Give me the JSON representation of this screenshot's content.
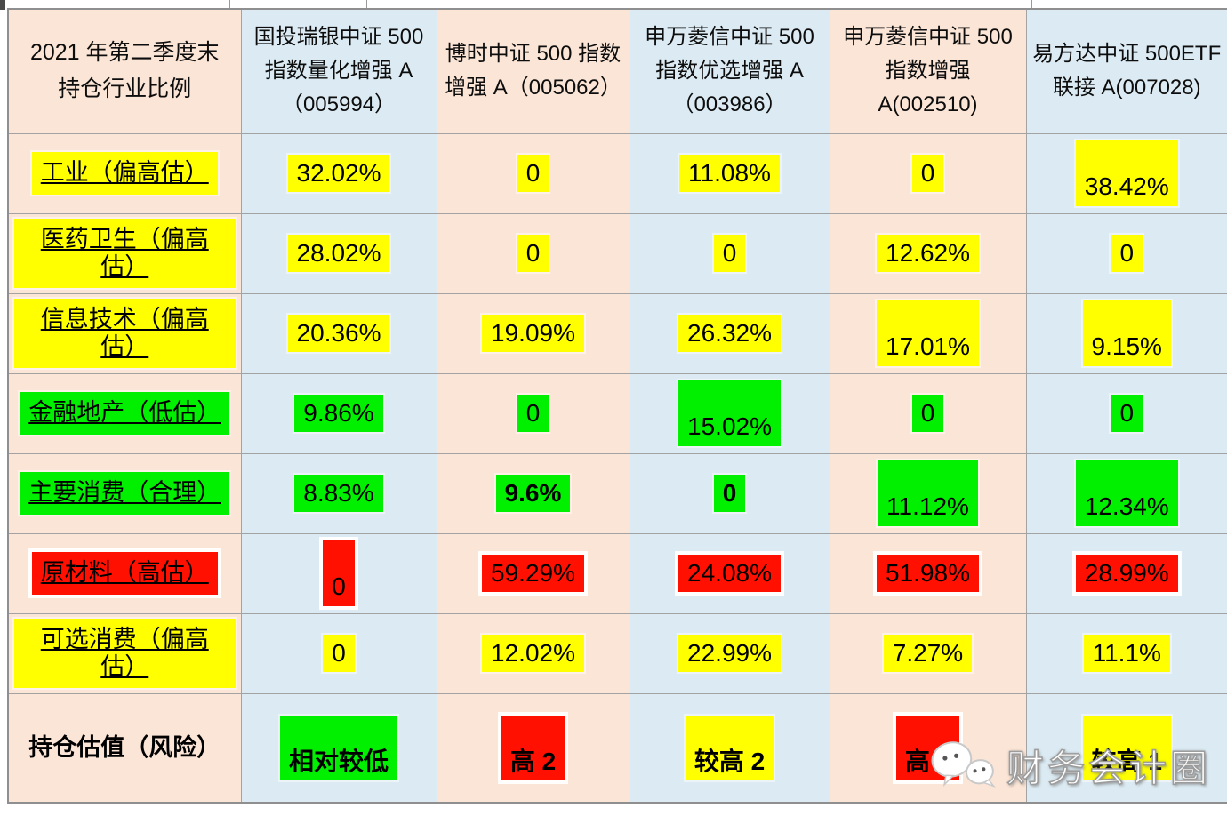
{
  "colors": {
    "pink": "#fbe5d6",
    "blue": "#dcebf3",
    "yellow": "#ffff00",
    "green": "#00f000",
    "red": "#ff1000",
    "grid": "#a3a3a3"
  },
  "watermark": {
    "text": "财务会计圈",
    "icon": "wechat-icon"
  },
  "table": {
    "corner": {
      "line1": "2021 年第二季度末",
      "line2": "持仓行业比例"
    },
    "columns": [
      {
        "label": "国投瑞银中证 500 指数量化增强 A（005994）",
        "tint": "blue"
      },
      {
        "label": "博时中证 500 指数增强 A（005062）",
        "tint": "pink"
      },
      {
        "label": "申万菱信中证 500 指数优选增强 A（003986）",
        "tint": "blue"
      },
      {
        "label": "申万菱信中证 500 指数增强 A(002510)",
        "tint": "pink"
      },
      {
        "label": "易方达中证 500ETF 联接 A(007028)",
        "tint": "blue"
      }
    ],
    "rows": [
      {
        "label": "工业（偏高估）",
        "label_hl": "yellow",
        "underline": true,
        "values": [
          {
            "text": "32.02%",
            "hl": "yellow"
          },
          {
            "text": "0",
            "hl": "yellow"
          },
          {
            "text": "11.08%",
            "hl": "yellow"
          },
          {
            "text": "0",
            "hl": "yellow"
          },
          {
            "text": "38.42%",
            "hl": "yellow",
            "tall": true
          }
        ]
      },
      {
        "label": "医药卫生（偏高估）",
        "label_hl": "yellow",
        "underline": true,
        "values": [
          {
            "text": "28.02%",
            "hl": "yellow"
          },
          {
            "text": "0",
            "hl": "yellow"
          },
          {
            "text": "0",
            "hl": "yellow"
          },
          {
            "text": "12.62%",
            "hl": "yellow"
          },
          {
            "text": "0",
            "hl": "yellow"
          }
        ]
      },
      {
        "label": "信息技术（偏高估）",
        "label_hl": "yellow",
        "underline": true,
        "values": [
          {
            "text": "20.36%",
            "hl": "yellow"
          },
          {
            "text": "19.09%",
            "hl": "yellow"
          },
          {
            "text": "26.32%",
            "hl": "yellow"
          },
          {
            "text": "17.01%",
            "hl": "yellow",
            "tall": true
          },
          {
            "text": "9.15%",
            "hl": "yellow",
            "tall": true
          }
        ]
      },
      {
        "label": "金融地产（低估）",
        "label_hl": "green",
        "underline": true,
        "values": [
          {
            "text": "9.86%",
            "hl": "green"
          },
          {
            "text": "0",
            "hl": "green"
          },
          {
            "text": "15.02%",
            "hl": "green",
            "tall": true
          },
          {
            "text": "0",
            "hl": "green"
          },
          {
            "text": "0",
            "hl": "green"
          }
        ]
      },
      {
        "label": "主要消费（合理）",
        "label_hl": "green",
        "underline": true,
        "values": [
          {
            "text": "8.83%",
            "hl": "green"
          },
          {
            "text": "9.6%",
            "hl": "green",
            "bold": true
          },
          {
            "text": "0",
            "hl": "green",
            "bold": true
          },
          {
            "text": "11.12%",
            "hl": "green",
            "tall": true
          },
          {
            "text": "12.34%",
            "hl": "green",
            "tall": true
          }
        ]
      },
      {
        "label": "原材料（高估）",
        "label_hl": "red",
        "underline": true,
        "values": [
          {
            "text": "0",
            "hl": "red",
            "tall": true
          },
          {
            "text": "59.29%",
            "hl": "red"
          },
          {
            "text": "24.08%",
            "hl": "red"
          },
          {
            "text": "51.98%",
            "hl": "red"
          },
          {
            "text": "28.99%",
            "hl": "red"
          }
        ]
      },
      {
        "label": "可选消费（偏高估）",
        "label_hl": "yellow",
        "underline": true,
        "values": [
          {
            "text": "0",
            "hl": "yellow"
          },
          {
            "text": "12.02%",
            "hl": "yellow"
          },
          {
            "text": "22.99%",
            "hl": "yellow"
          },
          {
            "text": "7.27%",
            "hl": "yellow"
          },
          {
            "text": "11.1%",
            "hl": "yellow"
          }
        ]
      },
      {
        "label": "持仓估值（风险）",
        "label_hl": "none",
        "underline": false,
        "bold": true,
        "values": [
          {
            "text": "相对较低",
            "hl": "green",
            "tall": true,
            "bold": true
          },
          {
            "text": "高 2",
            "hl": "red",
            "tall": true,
            "bold": true
          },
          {
            "text": "较高 2",
            "hl": "yellow",
            "tall": true,
            "bold": true
          },
          {
            "text": "高 1",
            "hl": "red",
            "tall": true,
            "bold": true
          },
          {
            "text": "较高 1",
            "hl": "yellow",
            "tall": true,
            "bold": true
          }
        ]
      }
    ]
  }
}
